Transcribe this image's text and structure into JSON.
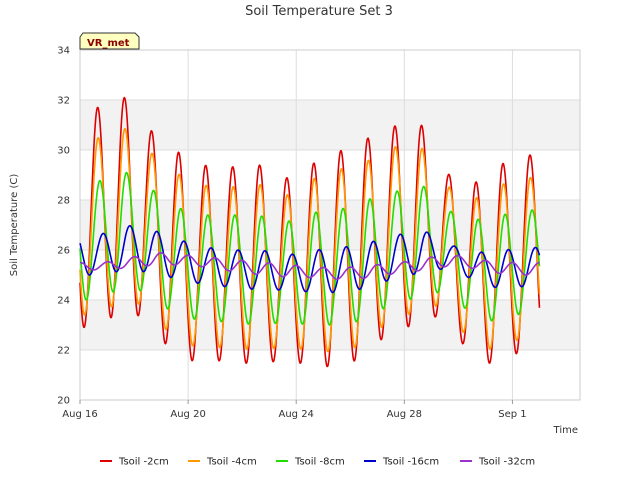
{
  "chart_data": {
    "type": "line",
    "title": "Soil Temperature Set 3",
    "xlabel": "Time",
    "ylabel": "Soil Temperature (C)",
    "badge": "VR_met",
    "ylim": [
      20,
      34
    ],
    "yticks": [
      20,
      22,
      24,
      26,
      28,
      30,
      32,
      34
    ],
    "xlim": [
      "2023-08-16",
      "2023-09-03T12:00"
    ],
    "xticks": [
      {
        "label": "Aug 16",
        "date": "2023-08-16"
      },
      {
        "label": "Aug 20",
        "date": "2023-08-20"
      },
      {
        "label": "Aug 24",
        "date": "2023-08-24"
      },
      {
        "label": "Aug 28",
        "date": "2023-08-28"
      },
      {
        "label": "Sep 1",
        "date": "2023-09-01"
      }
    ],
    "grid": true,
    "legend": "bottom",
    "series": [
      {
        "name": "Tsoil -2cm",
        "color": "#dd0000",
        "max": [
          31.6,
          32.3,
          30.9,
          30.0,
          29.4,
          29.3,
          29.5,
          28.8,
          29.4,
          29.9,
          30.4,
          30.9,
          31.3,
          29.1,
          28.6,
          29.4,
          29.8
        ],
        "min": [
          22.9,
          23.5,
          23.3,
          21.7,
          21.5,
          21.6,
          21.4,
          21.6,
          21.4,
          21.3,
          21.7,
          22.8,
          23.0,
          23.5,
          21.6,
          21.4,
          22.1
        ]
      },
      {
        "name": "Tsoil -4cm",
        "color": "#ff9900",
        "max": [
          30.4,
          31.0,
          30.0,
          29.1,
          28.6,
          28.5,
          28.7,
          28.1,
          28.8,
          29.2,
          29.5,
          30.1,
          30.3,
          28.6,
          28.0,
          28.6,
          28.9
        ],
        "min": [
          23.4,
          23.9,
          23.8,
          22.3,
          22.1,
          22.1,
          22.0,
          22.1,
          22.0,
          21.9,
          22.2,
          23.3,
          23.5,
          23.9,
          22.1,
          22.0,
          22.6
        ]
      },
      {
        "name": "Tsoil -8cm",
        "color": "#22dd00",
        "max": [
          28.7,
          29.2,
          28.5,
          27.7,
          27.4,
          27.4,
          27.4,
          27.1,
          27.5,
          27.6,
          28.0,
          28.3,
          28.7,
          27.6,
          27.2,
          27.4,
          27.6
        ],
        "min": [
          24.0,
          24.5,
          24.3,
          23.3,
          23.2,
          23.1,
          23.0,
          23.1,
          23.0,
          23.0,
          23.2,
          23.9,
          24.1,
          24.4,
          23.3,
          23.1,
          23.6
        ]
      },
      {
        "name": "Tsoil -16cm",
        "color": "#0000cc",
        "max": [
          26.6,
          27.0,
          26.8,
          26.4,
          26.1,
          26.0,
          26.0,
          25.8,
          26.0,
          26.1,
          26.3,
          26.6,
          26.8,
          26.2,
          25.9,
          26.0,
          26.1
        ],
        "min": [
          25.0,
          25.2,
          25.1,
          24.8,
          24.6,
          24.5,
          24.4,
          24.4,
          24.3,
          24.3,
          24.5,
          24.9,
          25.1,
          25.3,
          24.7,
          24.4,
          24.6
        ]
      },
      {
        "name": "Tsoil -32cm",
        "color": "#9933cc",
        "max": [
          25.5,
          25.7,
          25.9,
          25.8,
          25.7,
          25.6,
          25.5,
          25.4,
          25.3,
          25.3,
          25.4,
          25.5,
          25.7,
          25.8,
          25.6,
          25.5,
          25.5
        ],
        "min": [
          25.2,
          25.3,
          25.4,
          25.4,
          25.3,
          25.1,
          25.0,
          24.9,
          24.9,
          24.8,
          24.9,
          25.1,
          25.2,
          25.4,
          25.2,
          25.0,
          25.0
        ]
      }
    ]
  }
}
